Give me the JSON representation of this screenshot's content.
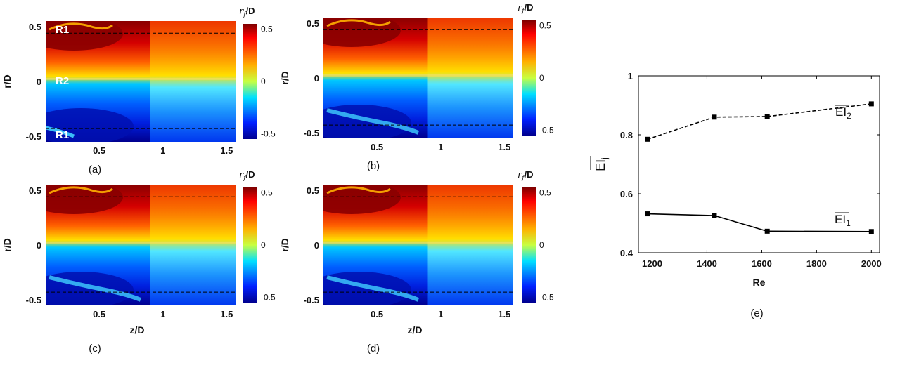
{
  "heatmaps": {
    "colorbar_label": "r_f/D",
    "colorbar_ticks": [
      "0.5",
      "0",
      "-0.5"
    ],
    "x_ticks": [
      "0.5",
      "1",
      "1.5"
    ],
    "y_ticks": [
      "0.5",
      "0",
      "-0.5"
    ],
    "y_label": "r/D",
    "x_label": "z/D",
    "panels": [
      "(a)",
      "(b)",
      "(c)",
      "(d)"
    ],
    "region_labels": [
      "R1",
      "R2",
      "R1"
    ]
  },
  "chart_data": {
    "type": "line",
    "xlabel": "Re",
    "ylabel": "EI_j",
    "xlim": [
      1150,
      2030
    ],
    "ylim": [
      0.4,
      1.0
    ],
    "x_ticks": [
      "1200",
      "1400",
      "1600",
      "1800",
      "2000"
    ],
    "y_ticks": [
      "1",
      "0.8",
      "0.6",
      "0.4"
    ],
    "panel_label": "(e)",
    "x": [
      1183,
      1427,
      1620,
      2000
    ],
    "series": [
      {
        "name": "EI_2",
        "values": [
          0.785,
          0.86,
          0.862,
          0.905
        ],
        "style": "dashed"
      },
      {
        "name": "EI_1",
        "values": [
          0.532,
          0.526,
          0.473,
          0.472
        ],
        "style": "solid"
      }
    ]
  },
  "colors": {
    "jet_dark_red": "#7f0000",
    "jet_red": "#ff1a00",
    "jet_yellow": "#ffe000",
    "jet_cyan": "#00d8ff",
    "jet_blue": "#0030ff",
    "jet_dark_blue": "#00008f",
    "line": "#000000"
  }
}
